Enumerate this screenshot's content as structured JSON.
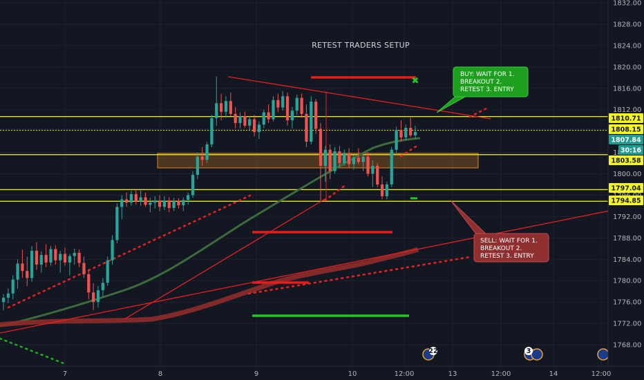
{
  "chart_data": {
    "type": "candlestick",
    "title": "RETEST TRADERS SETUP",
    "y_axis": {
      "range": [
        1766,
        1834
      ],
      "ticks": [
        "1832.00",
        "1828.00",
        "1824.00",
        "1820.00",
        "1816.00",
        "1812.00",
        "1808.00",
        "1804.00",
        "1800.00",
        "1796.00",
        "1792.00",
        "1788.00",
        "1784.00",
        "1780.00",
        "1776.00",
        "1772.00",
        "1768.00"
      ]
    },
    "x_axis": {
      "ticks": [
        "7",
        "8",
        "9",
        "10",
        "12:00",
        "13",
        "12:00",
        "14",
        "12:00"
      ]
    },
    "price_labels": [
      {
        "value": "1810.71",
        "style": "yellow"
      },
      {
        "value": "1808.15",
        "style": "yellow"
      },
      {
        "value": "1807.84",
        "style": "teal"
      },
      {
        "value": "30:16",
        "style": "teal"
      },
      {
        "value": "1803.58",
        "style": "yellow"
      },
      {
        "value": "1797.04",
        "style": "yellow"
      },
      {
        "value": "1794.85",
        "style": "yellow"
      }
    ],
    "horizontal_levels": [
      1810.71,
      1808.15,
      1803.58,
      1797.04,
      1794.85
    ],
    "annotations": [
      {
        "id": "buy",
        "text": [
          "BUY: WAIT FOR 1.",
          "BREAKOUT 2.",
          "RETEST 3. ENTRY"
        ],
        "color": "#1e9e1e"
      },
      {
        "id": "sell",
        "text": [
          "SELL: WAIT FOR 1.",
          "BREAKOUT 2.",
          "RETEST 3. ENTRY"
        ],
        "color": "#8f2f2f"
      }
    ],
    "event_badges": [
      "22",
      "3"
    ],
    "candles": [
      [
        1776.0,
        1777.5,
        1774.5,
        1776.8
      ],
      [
        1776.8,
        1778.5,
        1775.8,
        1777.6
      ],
      [
        1777.6,
        1781.0,
        1776.5,
        1780.2
      ],
      [
        1780.2,
        1784.0,
        1778.5,
        1783.2
      ],
      [
        1783.2,
        1785.8,
        1780.5,
        1781.8
      ],
      [
        1781.8,
        1784.5,
        1779.0,
        1780.5
      ],
      [
        1780.5,
        1786.5,
        1779.8,
        1785.6
      ],
      [
        1785.6,
        1787.2,
        1782.0,
        1783.0
      ],
      [
        1783.0,
        1785.5,
        1781.5,
        1784.8
      ],
      [
        1784.8,
        1786.8,
        1782.5,
        1783.4
      ],
      [
        1783.4,
        1786.5,
        1782.8,
        1785.9
      ],
      [
        1785.9,
        1786.6,
        1783.0,
        1783.8
      ],
      [
        1783.8,
        1785.6,
        1781.5,
        1785.0
      ],
      [
        1785.0,
        1786.2,
        1782.8,
        1783.4
      ],
      [
        1783.4,
        1785.0,
        1781.0,
        1784.6
      ],
      [
        1784.6,
        1786.0,
        1783.0,
        1785.2
      ],
      [
        1785.2,
        1785.8,
        1782.5,
        1783.3
      ],
      [
        1783.3,
        1784.5,
        1780.5,
        1781.2
      ],
      [
        1781.2,
        1782.0,
        1776.5,
        1777.8
      ],
      [
        1777.8,
        1779.5,
        1774.5,
        1776.0
      ],
      [
        1776.0,
        1779.0,
        1775.0,
        1778.2
      ],
      [
        1778.2,
        1780.5,
        1777.0,
        1779.6
      ],
      [
        1779.6,
        1784.5,
        1779.0,
        1783.8
      ],
      [
        1783.8,
        1788.5,
        1783.0,
        1787.6
      ],
      [
        1787.6,
        1794.5,
        1787.0,
        1793.8
      ],
      [
        1793.8,
        1796.0,
        1791.5,
        1795.2
      ],
      [
        1795.2,
        1796.5,
        1793.8,
        1794.6
      ],
      [
        1794.6,
        1796.8,
        1794.0,
        1796.2
      ],
      [
        1796.2,
        1797.0,
        1794.2,
        1794.8
      ],
      [
        1794.8,
        1797.2,
        1794.0,
        1795.6
      ],
      [
        1795.6,
        1796.5,
        1793.8,
        1794.2
      ],
      [
        1794.2,
        1795.5,
        1792.8,
        1794.6
      ],
      [
        1794.6,
        1795.8,
        1793.5,
        1795.0
      ],
      [
        1795.0,
        1796.0,
        1793.0,
        1793.8
      ],
      [
        1793.8,
        1795.8,
        1793.2,
        1795.0
      ],
      [
        1795.0,
        1795.6,
        1792.8,
        1793.6
      ],
      [
        1793.6,
        1795.5,
        1793.0,
        1794.9
      ],
      [
        1794.9,
        1795.4,
        1793.5,
        1794.1
      ],
      [
        1794.1,
        1795.6,
        1793.0,
        1795.1
      ],
      [
        1795.1,
        1796.5,
        1794.2,
        1796.0
      ],
      [
        1796.0,
        1800.5,
        1795.5,
        1799.8
      ],
      [
        1799.8,
        1804.0,
        1799.0,
        1803.2
      ],
      [
        1803.2,
        1805.0,
        1801.5,
        1802.6
      ],
      [
        1802.6,
        1806.0,
        1802.0,
        1805.5
      ],
      [
        1805.5,
        1811.0,
        1805.0,
        1810.4
      ],
      [
        1810.4,
        1818.2,
        1809.0,
        1813.2
      ],
      [
        1813.2,
        1815.0,
        1810.0,
        1811.6
      ],
      [
        1811.6,
        1814.5,
        1810.5,
        1813.6
      ],
      [
        1813.6,
        1815.2,
        1810.8,
        1811.2
      ],
      [
        1811.2,
        1812.5,
        1808.5,
        1809.5
      ],
      [
        1809.5,
        1811.5,
        1808.5,
        1810.8
      ],
      [
        1810.8,
        1811.6,
        1808.6,
        1809.0
      ],
      [
        1809.0,
        1810.8,
        1808.2,
        1810.2
      ],
      [
        1810.2,
        1811.0,
        1807.0,
        1807.8
      ],
      [
        1807.8,
        1809.8,
        1806.5,
        1809.2
      ],
      [
        1809.2,
        1812.0,
        1808.5,
        1811.5
      ],
      [
        1811.5,
        1813.0,
        1809.5,
        1810.2
      ],
      [
        1810.2,
        1814.5,
        1809.8,
        1813.8
      ],
      [
        1813.8,
        1815.0,
        1811.5,
        1812.4
      ],
      [
        1812.4,
        1815.5,
        1811.8,
        1814.5
      ],
      [
        1814.5,
        1815.2,
        1809.0,
        1810.0
      ],
      [
        1810.0,
        1812.5,
        1808.5,
        1811.8
      ],
      [
        1811.8,
        1814.8,
        1811.0,
        1814.2
      ],
      [
        1814.2,
        1815.0,
        1810.5,
        1811.2
      ],
      [
        1811.2,
        1813.0,
        1805.0,
        1806.0
      ],
      [
        1806.0,
        1814.5,
        1805.5,
        1813.5
      ],
      [
        1813.5,
        1814.0,
        1807.5,
        1808.4
      ],
      [
        1808.4,
        1809.5,
        1795.0,
        1801.5
      ],
      [
        1801.5,
        1805.2,
        1798.5,
        1804.5
      ],
      [
        1804.5,
        1805.5,
        1799.0,
        1800.5
      ],
      [
        1800.5,
        1805.0,
        1800.0,
        1804.2
      ],
      [
        1804.2,
        1805.2,
        1801.2,
        1802.0
      ],
      [
        1802.0,
        1804.5,
        1801.5,
        1803.8
      ],
      [
        1803.8,
        1804.8,
        1801.0,
        1801.8
      ],
      [
        1801.8,
        1803.5,
        1800.8,
        1803.0
      ],
      [
        1803.0,
        1804.8,
        1801.8,
        1802.2
      ],
      [
        1802.2,
        1803.8,
        1800.5,
        1803.2
      ],
      [
        1803.2,
        1804.0,
        1799.5,
        1800.0
      ],
      [
        1800.0,
        1802.5,
        1797.5,
        1801.5
      ],
      [
        1801.5,
        1802.0,
        1797.5,
        1798.0
      ],
      [
        1798.0,
        1799.5,
        1795.2,
        1795.8
      ],
      [
        1795.8,
        1798.5,
        1795.2,
        1798.0
      ],
      [
        1798.0,
        1805.0,
        1797.5,
        1804.5
      ],
      [
        1804.5,
        1808.8,
        1804.0,
        1808.2
      ],
      [
        1808.2,
        1810.0,
        1806.0,
        1806.8
      ],
      [
        1806.8,
        1809.2,
        1806.2,
        1808.6
      ],
      [
        1808.6,
        1810.5,
        1806.8,
        1807.2
      ],
      [
        1807.2,
        1809.0,
        1806.5,
        1807.84
      ]
    ]
  }
}
